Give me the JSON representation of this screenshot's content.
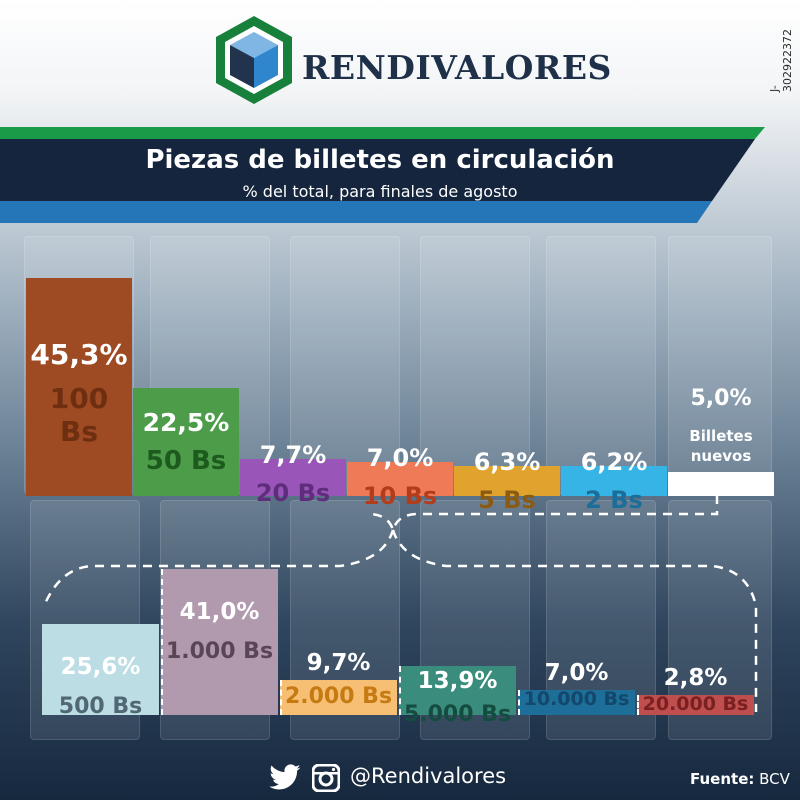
{
  "brand": "RENDIVALORES",
  "side_id": "J-302922372",
  "title": "Piezas de billetes en circulación",
  "subtitle": "% del total, para finales de agosto",
  "footer": {
    "handle": "@Rendivalores",
    "source_label": "Fuente:",
    "source_value": "BCV",
    "icons": [
      "twitter-icon",
      "instagram-icon"
    ]
  },
  "colors": {
    "green_band": "#1a9b48",
    "navy_band": "#14253d",
    "blue_band": "#2576b8"
  },
  "chart_data": [
    {
      "type": "bar",
      "categories": [
        "100 Bs",
        "50 Bs",
        "20 Bs",
        "10 Bs",
        "5 Bs",
        "2 Bs",
        "Billetes nuevos"
      ],
      "values": [
        45.3,
        22.5,
        7.7,
        7.0,
        6.3,
        6.2,
        5.0
      ],
      "value_labels": [
        "45,3%",
        "22,5%",
        "7,7%",
        "7,0%",
        "6,3%",
        "6,2%",
        "5,0%"
      ],
      "category_labels": [
        "100 Bs",
        "50 Bs",
        "20 Bs",
        "10 Bs",
        "5 Bs",
        "2 Bs",
        "Billetes nuevos"
      ],
      "colors": [
        "#9e4a22",
        "#4c9c4a",
        "#9a55b9",
        "#ee7a57",
        "#e0a32d",
        "#37b4e6",
        "#ffffff"
      ],
      "label_colors": [
        "#6e2e10",
        "#1d5a1d",
        "#5e2d7b",
        "#b23c1b",
        "#8a5b10",
        "#1b6d9a",
        "#ffffff"
      ]
    },
    {
      "type": "bar",
      "categories": [
        "500 Bs",
        "1.000 Bs",
        "2.000 Bs",
        "5.000 Bs",
        "10.000 Bs",
        "20.000 Bs"
      ],
      "values": [
        25.6,
        41.0,
        9.7,
        13.9,
        7.0,
        2.8
      ],
      "value_labels": [
        "25,6%",
        "41,0%",
        "9,7%",
        "13,9%",
        "7,0%",
        "2,8%"
      ],
      "category_labels": [
        "500 Bs",
        "1.000 Bs",
        "2.000 Bs",
        "5.000 Bs",
        "10.000 Bs",
        "20.000 Bs"
      ],
      "colors": [
        "#bcdde4",
        "#b29aae",
        "#f7bf73",
        "#3a8d7d",
        "#1d6e98",
        "#bf4f4f"
      ],
      "label_colors": [
        "#516874",
        "#5a4557",
        "#c57a12",
        "#154c40",
        "#13476b",
        "#7a2020"
      ]
    }
  ]
}
